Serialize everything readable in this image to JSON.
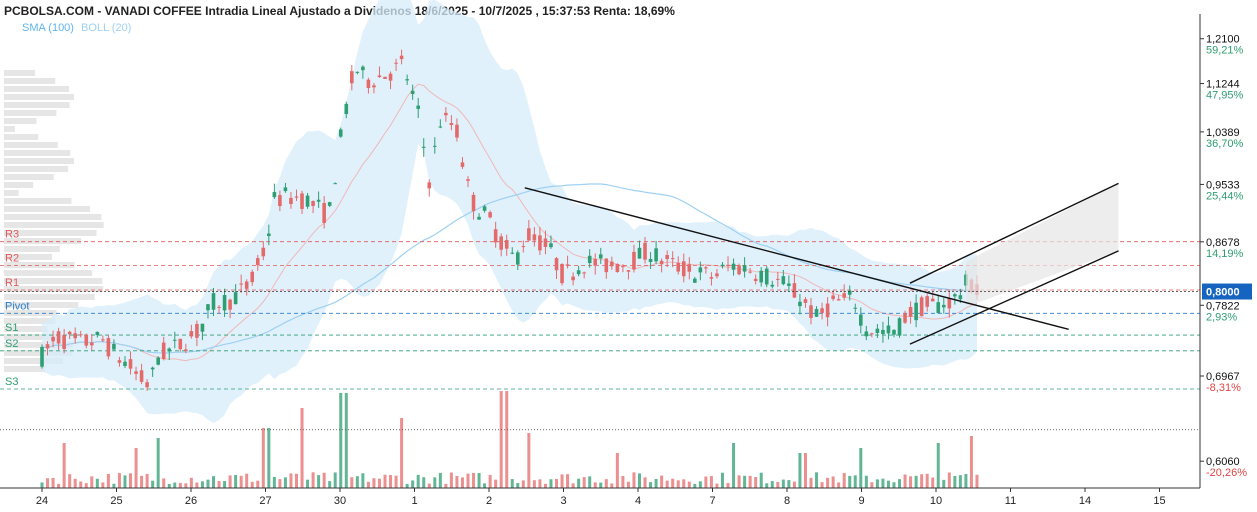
{
  "header": {
    "title": "PCBOLSA.COM - VANADI COFFEE Intradia Lineal Ajustado a Dividenos 18/6/2025 - 10/7/2025 , 15:37:53 Renta: 18,69%",
    "indicators": {
      "sma": "SMA (100)",
      "boll": "BOLL (20)"
    }
  },
  "colors": {
    "up": "#2e9e73",
    "down": "#e46a6a",
    "band_fill": "#d6ecfb",
    "sma_line": "#9fd0f2",
    "boll_mid": "#f1b7b7",
    "volume_profile": "#e6e6e6",
    "last_price_box": "#1565c0"
  },
  "chart_data": {
    "type": "candlestick",
    "y_axis": {
      "scale": "log",
      "range": [
        0.58,
        1.26
      ],
      "ticks": [
        {
          "price": 1.21,
          "label": "1,2100",
          "pct": "59,21%"
        },
        {
          "price": 1.1244,
          "label": "1,1244",
          "pct": "47,95%"
        },
        {
          "price": 1.0389,
          "label": "1,0389",
          "pct": "36,70%"
        },
        {
          "price": 0.9533,
          "label": "0,9533",
          "pct": "25,44%"
        },
        {
          "price": 0.8678,
          "label": "0,8678",
          "pct": "14,19%"
        },
        {
          "price": 0.7822,
          "label": "0,7822",
          "pct": "2,93%"
        },
        {
          "price": 0.6967,
          "label": "0,6967",
          "pct": "-8,31%"
        },
        {
          "price": 0.606,
          "label": "0,6060",
          "pct": "-20,26%"
        }
      ]
    },
    "x_axis": {
      "ticks": [
        {
          "i": 0,
          "label": "24"
        },
        {
          "i": 1,
          "label": "25"
        },
        {
          "i": 2,
          "label": "26"
        },
        {
          "i": 3,
          "label": "27"
        },
        {
          "i": 4,
          "label": "30"
        },
        {
          "i": 5,
          "label": "1"
        },
        {
          "i": 6,
          "label": "2"
        },
        {
          "i": 7,
          "label": "3"
        },
        {
          "i": 8,
          "label": "4"
        },
        {
          "i": 9,
          "label": "7"
        },
        {
          "i": 10,
          "label": "8"
        },
        {
          "i": 11,
          "label": "9"
        },
        {
          "i": 12,
          "label": "10"
        },
        {
          "i": 13,
          "label": "11"
        },
        {
          "i": 14,
          "label": "14"
        },
        {
          "i": 15,
          "label": "15"
        }
      ]
    },
    "last_price": {
      "value": 0.8,
      "label": "0,8000"
    },
    "pivot_levels": [
      {
        "name": "R3",
        "price": 0.868,
        "color": "#e05a5a"
      },
      {
        "name": "R2",
        "price": 0.835,
        "color": "#e05a5a"
      },
      {
        "name": "R1",
        "price": 0.802,
        "color": "#e05a5a"
      },
      {
        "name": "Pivot",
        "price": 0.772,
        "color": "#2a7fc9"
      },
      {
        "name": "S1",
        "price": 0.745,
        "color": "#2e9e73"
      },
      {
        "name": "S2",
        "price": 0.726,
        "color": "#2e9e73"
      },
      {
        "name": "S3",
        "price": 0.682,
        "color": "#2e9e73"
      }
    ],
    "price_path": [
      [
        0,
        0.72
      ],
      [
        0.2,
        0.742
      ],
      [
        0.5,
        0.735
      ],
      [
        0.8,
        0.74
      ],
      [
        1.0,
        0.72
      ],
      [
        1.15,
        0.71
      ],
      [
        1.3,
        0.695
      ],
      [
        1.45,
        0.685
      ],
      [
        1.55,
        0.72
      ],
      [
        1.8,
        0.73
      ],
      [
        2.1,
        0.75
      ],
      [
        2.3,
        0.785
      ],
      [
        2.55,
        0.79
      ],
      [
        2.8,
        0.81
      ],
      [
        3.0,
        0.86
      ],
      [
        3.12,
        0.93
      ],
      [
        3.3,
        0.935
      ],
      [
        3.55,
        0.93
      ],
      [
        3.85,
        0.905
      ],
      [
        4.05,
        1.06
      ],
      [
        4.2,
        1.155
      ],
      [
        4.35,
        1.13
      ],
      [
        4.6,
        1.14
      ],
      [
        4.85,
        1.16
      ],
      [
        5.05,
        1.07
      ],
      [
        5.2,
        0.96
      ],
      [
        5.35,
        1.06
      ],
      [
        5.55,
        1.05
      ],
      [
        5.75,
        0.93
      ],
      [
        6.0,
        0.9
      ],
      [
        6.15,
        0.87
      ],
      [
        6.35,
        0.84
      ],
      [
        6.5,
        0.88
      ],
      [
        6.8,
        0.86
      ],
      [
        7.0,
        0.82
      ],
      [
        7.3,
        0.84
      ],
      [
        7.6,
        0.835
      ],
      [
        7.9,
        0.84
      ],
      [
        8.15,
        0.855
      ],
      [
        8.35,
        0.84
      ],
      [
        8.75,
        0.825
      ],
      [
        9.0,
        0.82
      ],
      [
        9.25,
        0.835
      ],
      [
        9.5,
        0.83
      ],
      [
        9.75,
        0.82
      ],
      [
        9.95,
        0.81
      ],
      [
        10.2,
        0.79
      ],
      [
        10.4,
        0.765
      ],
      [
        10.6,
        0.785
      ],
      [
        10.9,
        0.79
      ],
      [
        11.05,
        0.755
      ],
      [
        11.25,
        0.748
      ],
      [
        11.45,
        0.748
      ],
      [
        11.6,
        0.77
      ],
      [
        11.8,
        0.78
      ],
      [
        12.0,
        0.782
      ],
      [
        12.25,
        0.79
      ],
      [
        12.45,
        0.815
      ],
      [
        12.55,
        0.8
      ]
    ],
    "volume_spikes": [
      [
        0.3,
        45
      ],
      [
        1.25,
        40
      ],
      [
        1.55,
        50
      ],
      [
        3.0,
        60
      ],
      [
        3.5,
        80
      ],
      [
        4.05,
        95
      ],
      [
        4.85,
        70
      ],
      [
        6.2,
        97
      ],
      [
        6.55,
        55
      ],
      [
        7.7,
        35
      ],
      [
        9.3,
        45
      ],
      [
        10.2,
        35
      ],
      [
        11.0,
        40
      ],
      [
        12.05,
        45
      ],
      [
        12.5,
        52
      ]
    ],
    "trendlines": [
      {
        "from": [
          6.48,
          0.948
        ],
        "to": [
          13.78,
          0.752
        ]
      },
      {
        "from": [
          11.65,
          0.811
        ],
        "to": [
          14.45,
          0.955
        ]
      },
      {
        "from": [
          11.65,
          0.734
        ],
        "to": [
          14.45,
          0.855
        ]
      }
    ],
    "channel_projection": [
      [
        12.4,
        0.84
      ],
      [
        14.45,
        0.955
      ],
      [
        14.45,
        0.855
      ],
      [
        12.4,
        0.78
      ]
    ]
  }
}
